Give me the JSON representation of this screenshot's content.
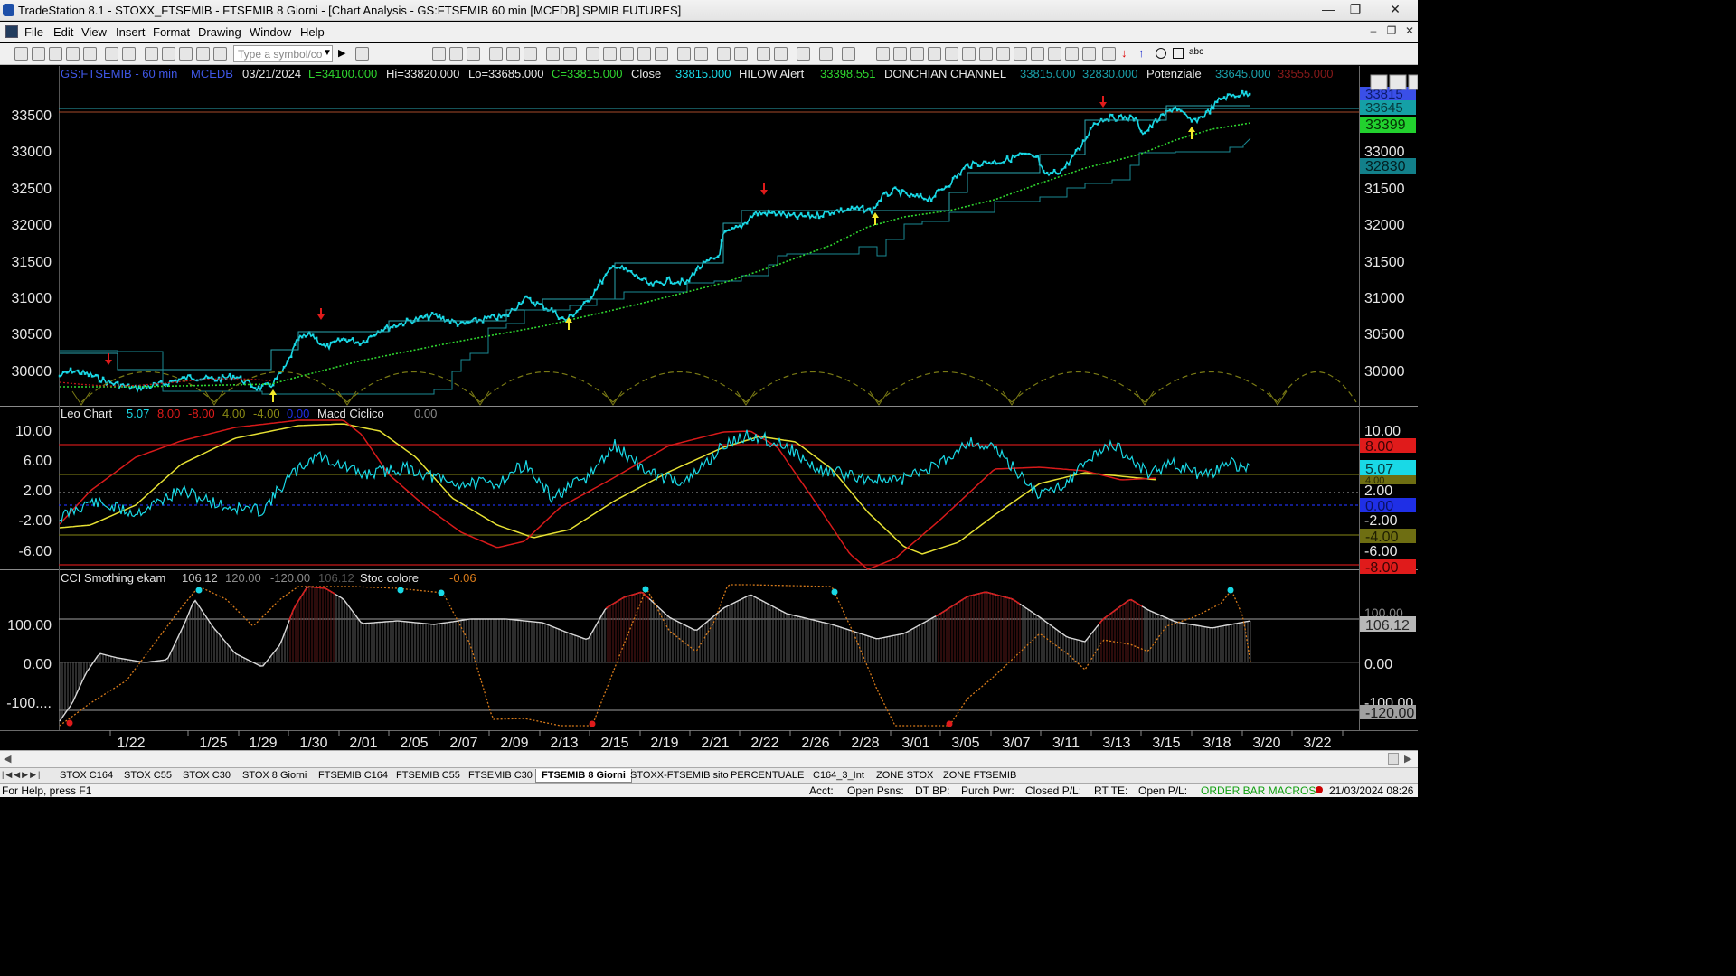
{
  "window": {
    "title": "TradeStation 8.1 - STOXX_FTSEMIB - FTSEMIB  8 Giorni - [Chart Analysis - GS:FTSEMIB  60 min  [MCEDB] SPMIB FUTURES]",
    "minimize": "—",
    "maximize": "❐",
    "close": "✕"
  },
  "menu": {
    "items": [
      "File",
      "Edit",
      "View",
      "Insert",
      "Format",
      "Drawing",
      "Window",
      "Help"
    ],
    "mdi_min": "–",
    "mdi_restore": "❐",
    "mdi_close": "✕"
  },
  "toolbar": {
    "symbol_placeholder": "Type a symbol/co",
    "text_tool_label": "abc"
  },
  "price_pane": {
    "header": {
      "symbol": "GS:FTSEMIB - 60 min",
      "source": "MCEDB",
      "date": "03/21/2024",
      "low_label": "L=34100.000",
      "hi": "Hi=33820.000",
      "lo": "Lo=33685.000",
      "close_c": "C=33815.000",
      "close_name": "Close",
      "close_val": "33815.000",
      "hilow_name": "HILOW Alert",
      "hilow_val": "33398.551",
      "donchian_name": "DONCHIAN CHANNEL",
      "donchian_val1": "33815.000",
      "donchian_val2": "32830.000",
      "potenziale_name": "Potenziale",
      "potenziale_val1": "33645.000",
      "potenziale_val2": "33555.000"
    },
    "y_ticks": [
      "33500",
      "33000",
      "32500",
      "32000",
      "31500",
      "31000",
      "30500",
      "30000"
    ],
    "badges": [
      "33815",
      "33645",
      "33399",
      "32830"
    ]
  },
  "macd_pane": {
    "header": {
      "name": "Leo Chart",
      "v1": "5.07",
      "v2": "8.00",
      "v3": "-8.00",
      "v4": "4.00",
      "v5": "-4.00",
      "v6": "0.00",
      "macd_name": "Macd Ciclico",
      "macd_val": "0.00"
    },
    "y_ticks": [
      "10.00",
      "6.00",
      "2.00",
      "-2.00",
      "-6.00"
    ],
    "right_ticks": [
      "10.00",
      "2.00",
      "-2.00",
      "-6.00"
    ],
    "badges": [
      "8.00",
      "5.07",
      "4.00",
      "0.00",
      "-4.00",
      "-8.00"
    ]
  },
  "cci_pane": {
    "header": {
      "name": "CCI Smothing ekam",
      "v1": "106.12",
      "v2": "120.00",
      "v3": "-120.00",
      "v4": "106.12",
      "stoc_name": "Stoc colore",
      "stoc_val": "-0.06"
    },
    "y_ticks": [
      "100.00",
      "0.00",
      "-100...."
    ],
    "right_ticks": [
      "100.00",
      "0.00",
      "-100.00"
    ],
    "badges": [
      "106.12",
      "-120.00"
    ]
  },
  "x_axis": {
    "labels": [
      "1/22",
      "1/25",
      "1/29",
      "1/30",
      "2/01",
      "2/05",
      "2/07",
      "2/09",
      "2/13",
      "2/15",
      "2/19",
      "2/21",
      "2/22",
      "2/26",
      "2/28",
      "3/01",
      "3/05",
      "3/07",
      "3/11",
      "3/13",
      "3/15",
      "3/18",
      "3/20",
      "3/22"
    ]
  },
  "tabs": [
    "STOX C164",
    "STOX C55",
    "STOX  C30",
    "STOX  8 Giorni",
    "FTSEMIB C164",
    "FTSEMIB C55",
    "FTSEMIB C30",
    "FTSEMIB  8 Giorni",
    "STOXX-FTSEMIB sito",
    "PERCENTUALE",
    "C164_3_Int",
    "ZONE STOX",
    "ZONE FTSEMIB"
  ],
  "active_tab_index": 7,
  "status": {
    "help": "For Help, press F1",
    "acct": "Acct:",
    "open_psns": "Open Psns:",
    "dt_bp": "DT BP:",
    "purch_pwr": "Purch Pwr:",
    "closed_pl": "Closed P/L:",
    "rt_te": "RT TE:",
    "open_pl": "Open P/L:",
    "macros": "ORDER BAR  MACROS",
    "datetime": "21/03/2024 08:26"
  },
  "colors": {
    "price": "#19d9e6",
    "green_line": "#2fd62f",
    "donchian": "#2aa6b0",
    "red": "#e01b1b",
    "yellow": "#e6e033",
    "olive": "#7a7a14",
    "blue": "#1f2fe6",
    "orange_dotted": "#d77a1a"
  }
}
